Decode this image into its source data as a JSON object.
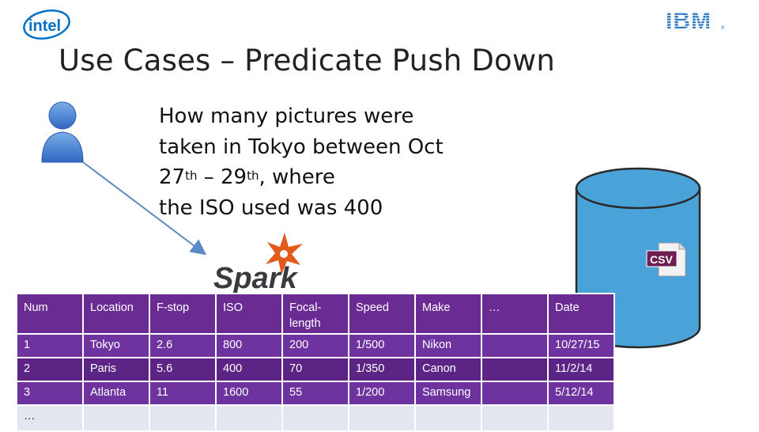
{
  "slide": {
    "title": "Use Cases – Predicate Push Down",
    "question": {
      "line1": "How many pictures were",
      "line2": "taken in Tokyo between Oct",
      "line3_pre": "27",
      "line3_sup1": "th",
      "line3_mid": " – 29",
      "line3_sup2": "th",
      "line3_post": ", where",
      "line4": "the ISO used was 400"
    },
    "logos": {
      "left": "intel",
      "right": "IBM",
      "right_mark": "®",
      "engine": "Spark",
      "file_badge": "CSV"
    },
    "icons": [
      "user-icon",
      "spark-logo-icon",
      "database-icon",
      "csv-file-icon"
    ],
    "colors": {
      "table_header": "#6a2c92",
      "table_row": "#6f33a0",
      "db_fill": "#4aa3d8",
      "intel_blue": "#0071c5",
      "ibm_blue": "#1f70c1"
    }
  },
  "table": {
    "columns": [
      "Num",
      "Location",
      "F-stop",
      "ISO",
      "Focal-length",
      "Speed",
      "Make",
      "…",
      "Date"
    ],
    "rows": [
      [
        "1",
        "Tokyo",
        "2.6",
        "800",
        "200",
        "1/500",
        "Nikon",
        "",
        "10/27/15"
      ],
      [
        "2",
        "Paris",
        "5.6",
        "400",
        "70",
        "1/350",
        "Canon",
        "",
        "11/2/14"
      ],
      [
        "3",
        "Atlanta",
        "11",
        "1600",
        "55",
        "1/200",
        "Samsung",
        "",
        "5/12/14"
      ],
      [
        "…",
        "",
        "",
        "",
        "",
        "",
        "",
        "",
        ""
      ]
    ]
  }
}
